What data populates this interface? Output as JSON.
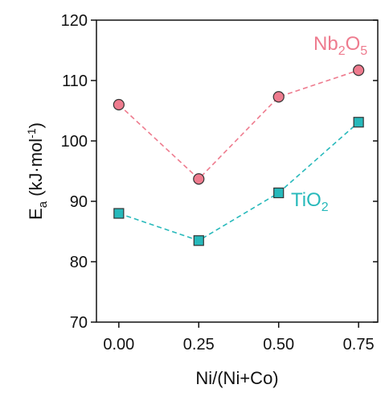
{
  "chart_data": {
    "type": "line",
    "x": [
      0,
      0.25,
      0.5,
      0.75
    ],
    "xlim": [
      -0.07,
      0.81
    ],
    "xticks": [
      {
        "value": 0,
        "label": "0.00"
      },
      {
        "value": 0.25,
        "label": "0.25"
      },
      {
        "value": 0.5,
        "label": "0.50"
      },
      {
        "value": 0.75,
        "label": "0.75"
      }
    ],
    "ylim": [
      70,
      120
    ],
    "yticks": [
      70,
      80,
      90,
      100,
      110,
      120
    ],
    "xlabel": "Ni/(Ni+Co)",
    "ylabel_parts": [
      "E",
      "a",
      "(kJ·mol",
      "-1",
      ")"
    ],
    "series": [
      {
        "name": "Nb2O5",
        "color": "#ee7b8e",
        "marker": "circle",
        "values": [
          106,
          93.7,
          107.3,
          111.7
        ]
      },
      {
        "name": "TiO2",
        "color": "#27b9bb",
        "marker": "square",
        "values": [
          88,
          83.5,
          91.4,
          103.1
        ]
      }
    ]
  }
}
